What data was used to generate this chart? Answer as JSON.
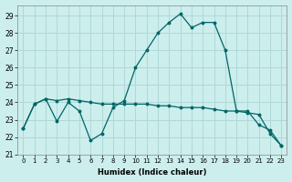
{
  "xlabel": "Humidex (Indice chaleur)",
  "background_color": "#cceeed",
  "grid_color": "#b0d8d8",
  "line_color": "#006666",
  "xlim": [
    -0.5,
    23.5
  ],
  "ylim": [
    21,
    29.6
  ],
  "yticks": [
    21,
    22,
    23,
    24,
    25,
    26,
    27,
    28,
    29
  ],
  "xticks": [
    0,
    1,
    2,
    3,
    4,
    5,
    6,
    7,
    8,
    9,
    10,
    11,
    12,
    13,
    14,
    15,
    16,
    17,
    18,
    19,
    20,
    21,
    22,
    23
  ],
  "series1_x": [
    0,
    1,
    2,
    3,
    4,
    5,
    6,
    7,
    8,
    9,
    10,
    11,
    12,
    13,
    14,
    15,
    16,
    17,
    18,
    19,
    20,
    21,
    22,
    23
  ],
  "series1_y": [
    22.5,
    23.9,
    24.2,
    22.9,
    24.0,
    23.5,
    21.8,
    22.2,
    23.7,
    24.1,
    26.0,
    27.0,
    28.0,
    28.6,
    29.1,
    28.3,
    28.6,
    28.6,
    27.0,
    23.5,
    23.5,
    22.7,
    22.4,
    21.5
  ],
  "series2_x": [
    0,
    1,
    2,
    3,
    4,
    5,
    6,
    7,
    8,
    9,
    10,
    11,
    12,
    13,
    14,
    15,
    16,
    17,
    18,
    19,
    20,
    21,
    22,
    23
  ],
  "series2_y": [
    22.5,
    23.9,
    24.2,
    24.1,
    24.2,
    24.1,
    24.0,
    23.9,
    23.9,
    23.9,
    23.9,
    23.9,
    23.8,
    23.8,
    23.7,
    23.7,
    23.7,
    23.6,
    23.5,
    23.5,
    23.4,
    23.3,
    22.2,
    21.5
  ]
}
